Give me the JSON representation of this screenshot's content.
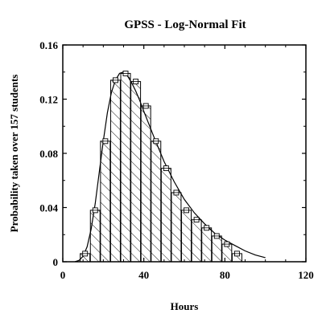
{
  "chart_data": {
    "type": "bar",
    "title": "GPSS - Log-Normal Fit",
    "xlabel": "Hours",
    "ylabel": "Probability taken over 157 students",
    "xlim": [
      0,
      120
    ],
    "ylim": [
      0,
      0.16
    ],
    "x_ticks": [
      0,
      40,
      80,
      120
    ],
    "x_tick_labels": [
      "0",
      "40",
      "80",
      "120"
    ],
    "y_ticks": [
      0,
      0.04,
      0.08,
      0.12,
      0.16
    ],
    "y_tick_labels": [
      "0",
      "0.04",
      "0.08",
      "0.12",
      "0.16"
    ],
    "grid": false,
    "legend": "none",
    "bin_width": 4.76,
    "series": [
      {
        "kind": "histogram",
        "bin_centers": [
          11,
          16,
          21,
          26,
          31,
          36,
          41,
          46,
          51,
          56,
          61,
          66,
          71,
          76,
          81,
          86
        ],
        "values": [
          0.006,
          0.038,
          0.089,
          0.134,
          0.139,
          0.133,
          0.115,
          0.089,
          0.069,
          0.051,
          0.038,
          0.031,
          0.025,
          0.019,
          0.013,
          0.006
        ]
      },
      {
        "kind": "fit-curve",
        "x": [
          6,
          8,
          10,
          12,
          14,
          16,
          18,
          20,
          22,
          24,
          26,
          28,
          30,
          32,
          34,
          36,
          38,
          40,
          45,
          50,
          55,
          60,
          65,
          70,
          75,
          80,
          85,
          90,
          95,
          100
        ],
        "y": [
          0.0,
          0.001,
          0.004,
          0.011,
          0.024,
          0.043,
          0.066,
          0.089,
          0.11,
          0.125,
          0.134,
          0.139,
          0.14,
          0.137,
          0.132,
          0.126,
          0.119,
          0.111,
          0.092,
          0.074,
          0.059,
          0.046,
          0.036,
          0.028,
          0.021,
          0.016,
          0.012,
          0.008,
          0.005,
          0.003
        ]
      }
    ]
  }
}
